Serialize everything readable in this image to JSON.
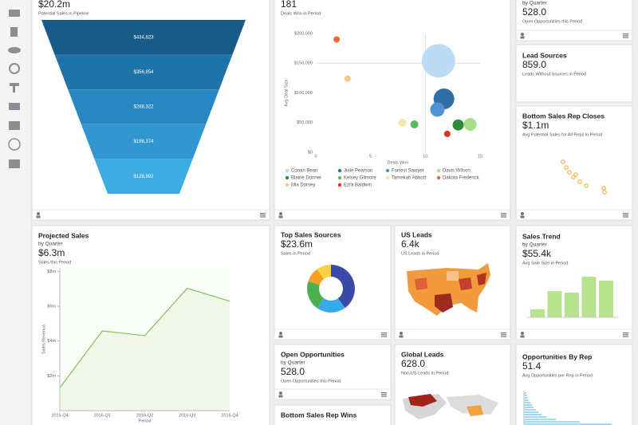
{
  "pipeline": {
    "value": "$20.2m",
    "caption": "Potential Sales in Pipeline",
    "chart_data": {
      "type": "funnel",
      "values": [
        434823,
        356854,
        288322,
        198374,
        128992
      ],
      "value_labels": [
        "$434,823",
        "$356,854",
        "$288,322",
        "$198,374",
        "$128,992"
      ],
      "colors": [
        "#185b86",
        "#1e73a8",
        "#2887c0",
        "#3296d0",
        "#3eabe3"
      ]
    }
  },
  "deals_won": {
    "value": "181",
    "caption": "Deals Won in Period",
    "chart_data": {
      "type": "scatter",
      "x_label": "Deals Won",
      "y_label": "Avg Deal Size",
      "xlim": [
        0,
        15
      ],
      "xticks": [
        0,
        5,
        10,
        15
      ],
      "ylim": [
        0,
        200000
      ],
      "yticks": [
        {
          "value": 0,
          "label": "$0"
        },
        {
          "value": 50000,
          "label": "$50,000"
        },
        {
          "value": 100000,
          "label": "$100,000"
        },
        {
          "value": 150000,
          "label": "$150,000"
        },
        {
          "value": 200000,
          "label": "$200,000"
        }
      ],
      "series": [
        {
          "name": "Conan Bean",
          "color": "#bcdcf5",
          "x": [
            11.2
          ],
          "values": [
            154000
          ],
          "sizes": [
            21
          ]
        },
        {
          "name": "Julie Pearson",
          "color": "#2f6fa5",
          "x": [
            11.7
          ],
          "values": [
            90000
          ],
          "sizes": [
            13
          ]
        },
        {
          "name": "Forrest Sawyer",
          "color": "#4f92cf",
          "x": [
            11.1
          ],
          "values": [
            72000
          ],
          "sizes": [
            9
          ]
        },
        {
          "name": "Davis Wilson",
          "color": "#a8dc8c",
          "x": [
            14.1
          ],
          "values": [
            47000
          ],
          "sizes": [
            8
          ]
        },
        {
          "name": "Blaine Donner",
          "color": "#2e8b3a",
          "x": [
            13
          ],
          "values": [
            46000
          ],
          "sizes": [
            7
          ]
        },
        {
          "name": "Kelsey Gilmore",
          "color": "#5cb85c",
          "x": [
            9
          ],
          "values": [
            47000
          ],
          "sizes": [
            5
          ]
        },
        {
          "name": "Tamekah Abbott",
          "color": "#f6e3a6",
          "x": [
            7.9
          ],
          "values": [
            50000
          ],
          "sizes": [
            5
          ]
        },
        {
          "name": "Dakota Frederick",
          "color": "#e8693a",
          "x": [
            1.9
          ],
          "values": [
            190000
          ],
          "sizes": [
            4
          ]
        },
        {
          "name": "Mia Dorsey",
          "color": "#f5c97a",
          "x": [
            2.9
          ],
          "values": [
            124000
          ],
          "sizes": [
            4
          ]
        },
        {
          "name": "Ezra Baldwin",
          "color": "#d9342b",
          "x": [
            12
          ],
          "values": [
            31000
          ],
          "sizes": [
            4
          ]
        }
      ]
    }
  },
  "projected_sales": {
    "title": "Projected Sales",
    "subtitle": "by Quarter",
    "value": "$6.3m",
    "caption": "Sales this Period",
    "chart_data": {
      "type": "area",
      "y_label": "Sales Revenue",
      "x_label": "Period",
      "categories": [
        "2015-Q4",
        "2016-Q1",
        "2016-Q2",
        "2016-Q3",
        "2016-Q4"
      ],
      "values": [
        1.31,
        4.58,
        4.31,
        7.03,
        6.29
      ],
      "color": "#7cc35a",
      "ylim": [
        0,
        8.2
      ],
      "yticks": [
        {
          "value": 2,
          "label": "$2m"
        },
        {
          "value": 4,
          "label": "$4m"
        },
        {
          "value": 6,
          "label": "$6m"
        },
        {
          "value": 8,
          "label": "$8m"
        }
      ]
    }
  },
  "top_sales_sources": {
    "title": "Top Sales Sources",
    "value": "$23.6m",
    "caption": "Sales in Period",
    "chart_data": {
      "type": "donut",
      "values": [
        40,
        20,
        20,
        10,
        10
      ],
      "colors": [
        "#3b4aa8",
        "#35a9ec",
        "#4caf50",
        "#f5a020",
        "#f6d33c"
      ]
    }
  },
  "us_leads": {
    "title": "US Leads",
    "value": "6.4k",
    "caption": "US Leads in Period"
  },
  "open_opportunities": {
    "title": "Open Opportunities",
    "subtitle": "by Quarter",
    "value": "528.0",
    "caption": "Open Opportunities this Period"
  },
  "bottom_sales_rep_wins": {
    "title": "Bottom Sales Rep Wins"
  },
  "global_leads": {
    "title": "Global Leads",
    "value": "628.0",
    "caption": "Non-US Leads in Period"
  },
  "open_opportunities_top": {
    "subtitle": "by Quarter",
    "value": "528.0",
    "caption": "Open Opportunities this Period"
  },
  "lead_sources": {
    "title": "Lead Sources",
    "value": "859.0",
    "caption": "Leads Without Sources in Period"
  },
  "bottom_sales_rep_closes": {
    "title": "Bottom Sales Rep Closes",
    "value": "$1.1m",
    "caption": "Avg Potential Sales for All Reps in Period",
    "chart_data": {
      "type": "scatter",
      "x": [
        1.2,
        2,
        2.8,
        3.8,
        4.4,
        5.4,
        7,
        11.4,
        11.6
      ],
      "values": [
        9.4,
        8,
        6.8,
        5.6,
        6.2,
        4.4,
        3.4,
        2.8,
        1.8
      ],
      "color": "#f0a830"
    }
  },
  "sales_trend": {
    "title": "Sales Trend",
    "subtitle": "by Quarter",
    "value": "$55.4k",
    "caption": "Avg Sale Size in Period",
    "chart_data": {
      "type": "bar",
      "values": [
        10,
        33,
        31,
        51,
        46
      ],
      "color": "#b7e28e"
    }
  },
  "opportunities_by_rep": {
    "title": "Opportunities By Rep",
    "value": "51.4",
    "caption": "Avg Opportunities per Rep in Period",
    "chart_data": {
      "type": "barh",
      "values": [
        3,
        4,
        5,
        6,
        8,
        10,
        12,
        15,
        18,
        22,
        28,
        40,
        70,
        110
      ],
      "color": "#a9d6f2"
    }
  }
}
